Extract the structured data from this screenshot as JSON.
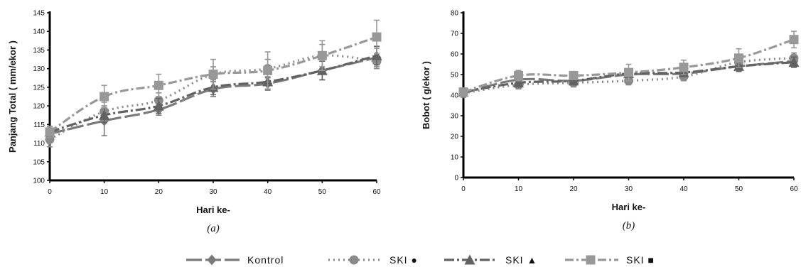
{
  "chart_data": [
    {
      "type": "line",
      "caption": "(a)",
      "xlabel": "Hari ke-",
      "ylabel": "Panjang Total ( mm/ekor )",
      "x": [
        0,
        10,
        20,
        30,
        40,
        50,
        60
      ],
      "xlim": [
        0,
        60
      ],
      "ylim": [
        100,
        145
      ],
      "yticks": [
        100,
        105,
        110,
        115,
        120,
        125,
        130,
        135,
        140,
        145
      ],
      "xticks": [
        0,
        10,
        20,
        30,
        40,
        50,
        60
      ],
      "grid": false,
      "series": [
        {
          "name": "Kontrol",
          "values": [
            112.5,
            116.0,
            119.0,
            124.5,
            126.0,
            129.5,
            133.0
          ],
          "errors": [
            2.0,
            4.0,
            1.5,
            2.0,
            1.8,
            2.5,
            2.5
          ]
        },
        {
          "name": "SKI ●",
          "values": [
            111.0,
            118.5,
            121.5,
            128.5,
            130.0,
            133.5,
            132.0
          ],
          "errors": [
            2.0,
            2.5,
            2.0,
            2.0,
            2.5,
            3.0,
            2.0
          ]
        },
        {
          "name": "SKI ▲",
          "values": [
            113.0,
            117.5,
            120.0,
            125.0,
            126.5,
            129.5,
            133.5
          ],
          "errors": [
            1.5,
            2.0,
            2.0,
            2.0,
            2.0,
            2.5,
            2.5
          ]
        },
        {
          "name": "SKI ■",
          "values": [
            113.0,
            122.5,
            125.5,
            128.5,
            129.5,
            133.5,
            138.5
          ],
          "errors": [
            1.5,
            3.0,
            3.0,
            4.0,
            5.0,
            4.0,
            4.5
          ]
        }
      ]
    },
    {
      "type": "line",
      "caption": "(b)",
      "xlabel": "Hari ke-",
      "ylabel": "Bobot ( g/ekor )",
      "x": [
        0,
        10,
        20,
        30,
        40,
        50,
        60
      ],
      "xlim": [
        0,
        60
      ],
      "ylim": [
        0,
        80
      ],
      "yticks": [
        0,
        10,
        20,
        30,
        40,
        50,
        60,
        70,
        80
      ],
      "xticks": [
        0,
        10,
        20,
        30,
        40,
        50,
        60
      ],
      "grid": false,
      "series": [
        {
          "name": "Kontrol",
          "values": [
            41.0,
            47.5,
            47.0,
            50.0,
            50.5,
            54.0,
            56.5
          ],
          "errors": [
            2.0,
            2.0,
            2.0,
            2.0,
            2.0,
            2.5,
            2.5
          ]
        },
        {
          "name": "SKI ●",
          "values": [
            41.0,
            45.0,
            46.0,
            47.0,
            49.0,
            56.0,
            58.0
          ],
          "errors": [
            2.0,
            2.0,
            2.0,
            2.0,
            2.0,
            2.5,
            2.5
          ]
        },
        {
          "name": "SKI ▲",
          "values": [
            41.5,
            46.0,
            47.0,
            50.5,
            51.0,
            54.0,
            56.0
          ],
          "errors": [
            2.0,
            2.0,
            2.0,
            2.0,
            2.0,
            2.5,
            2.5
          ]
        },
        {
          "name": "SKI ■",
          "values": [
            41.5,
            49.5,
            49.5,
            51.0,
            53.5,
            58.0,
            67.0
          ],
          "errors": [
            2.0,
            2.5,
            2.0,
            4.0,
            3.5,
            4.5,
            4.0
          ]
        }
      ]
    }
  ],
  "legend": [
    {
      "label": "Kontrol",
      "marker": "diamond",
      "dash": "solid-dash"
    },
    {
      "label": "SKI ●",
      "marker": "circle",
      "dash": "dotted"
    },
    {
      "label": "SKI ▲",
      "marker": "triangle",
      "dash": "long-dash-dot"
    },
    {
      "label": "SKI ■",
      "marker": "square",
      "dash": "dash-dot"
    }
  ],
  "colors": {
    "Kontrol": "#7a7a7a",
    "SKI ●": "#8a8a8a",
    "SKI ▲": "#626262",
    "SKI ■": "#989898",
    "axis": "#000000"
  }
}
